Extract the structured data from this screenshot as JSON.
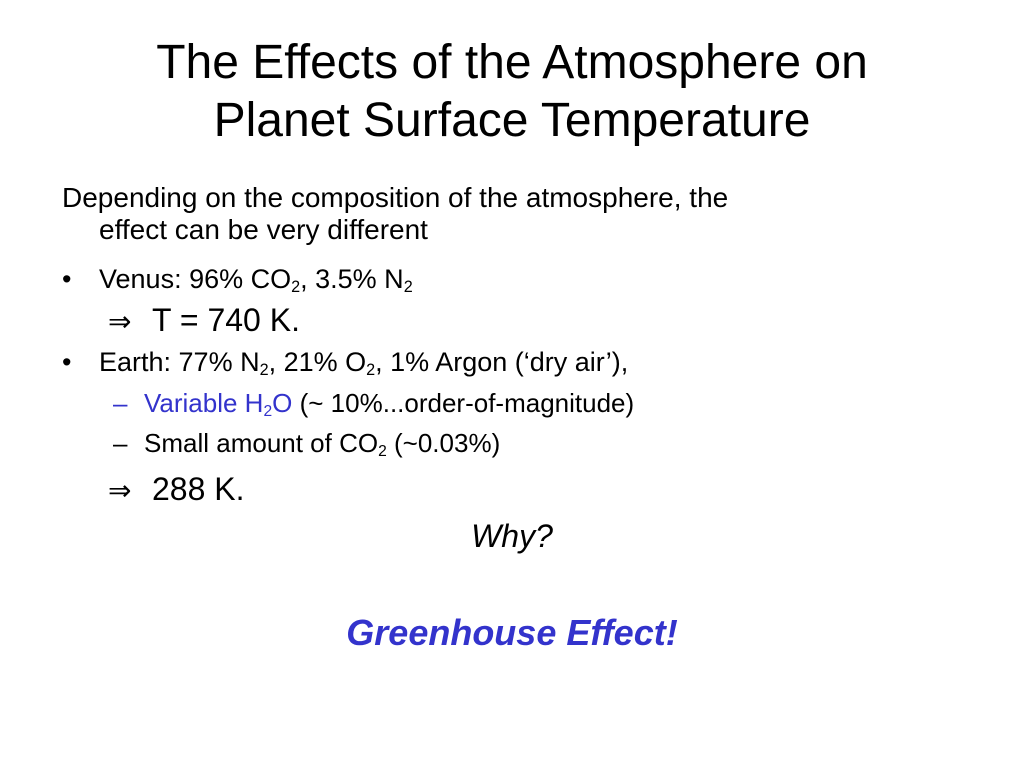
{
  "title": {
    "line1": "The Effects of the Atmosphere on",
    "line2": "Planet Surface Temperature"
  },
  "intro": {
    "line1": "Depending on the composition of the atmosphere, the",
    "line2": "effect can be very different"
  },
  "bullet_symbol": "•",
  "dash_symbol": "–",
  "implies_symbol": "⇒",
  "venus": {
    "text_a": "Venus: 96% CO",
    "sub_a": "2",
    "text_b": ", 3.5% N",
    "sub_b": "2"
  },
  "venus_result": "T = 740 K.",
  "earth": {
    "text_a": "Earth: 77% N",
    "sub_a": "2",
    "text_b": ", 21% O",
    "sub_b": "2",
    "text_c": ", 1% Argon (‘dry air’),"
  },
  "water": {
    "text_a": "Variable H",
    "sub_a": "2",
    "text_b": "O",
    "text_c": " (~ 10%...order-of-magnitude)"
  },
  "co2": {
    "text_a": "Small amount of CO",
    "sub_a": "2",
    "text_b": " (~0.03%)"
  },
  "earth_result": "288 K.",
  "question": "Why?",
  "answer": "Greenhouse Effect!",
  "colors": {
    "accent_blue": "#3333cc",
    "text": "#000000",
    "background": "#ffffff"
  }
}
